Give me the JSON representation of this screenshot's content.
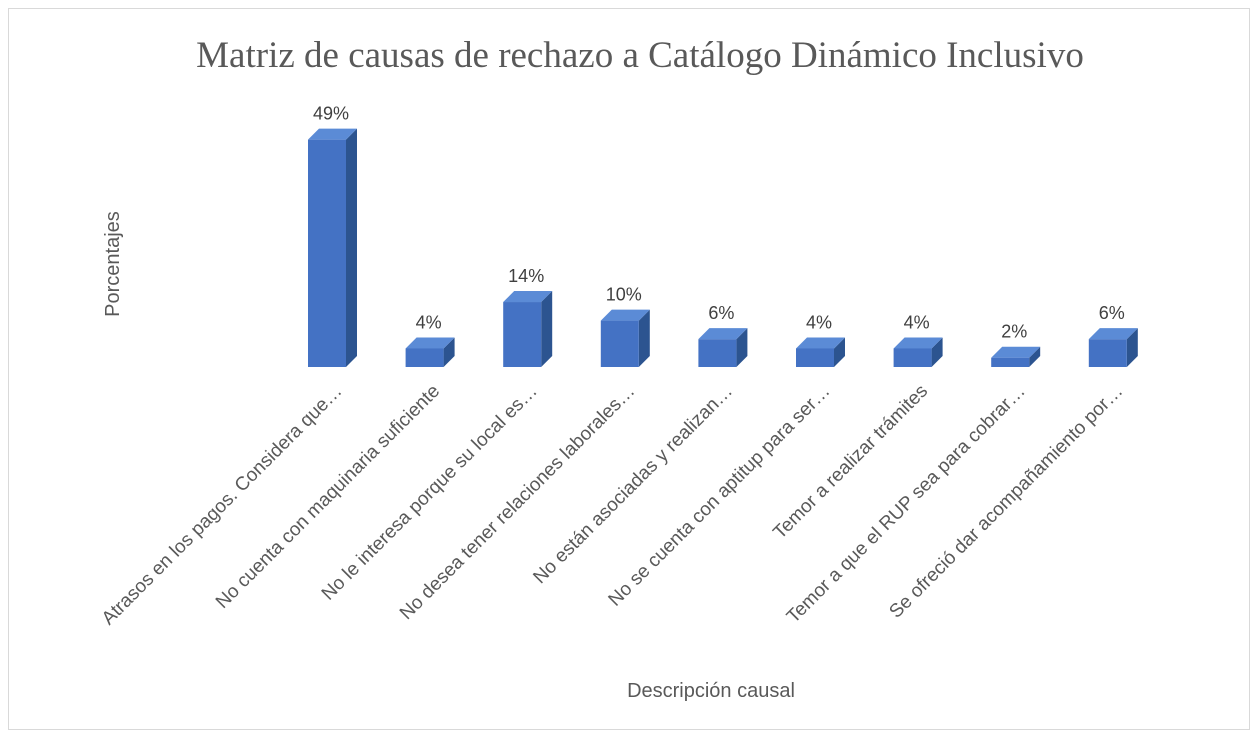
{
  "chart_data": {
    "type": "bar",
    "title": "Matriz de causas de rechazo a Catálogo Dinámico Inclusivo",
    "xlabel": "Descripción causal",
    "ylabel": "Porcentajes",
    "categories": [
      "Atrasos en los pagos. Considera que…",
      "No cuenta con maquinaria suficiente",
      "No le interesa porque su local es…",
      "No desea tener relaciones laborales…",
      "No están asociadas y realizan…",
      "No se cuenta con aptitup para ser…",
      "Temor a realizar trámites",
      "Temor a que el RUP sea para cobrar…",
      "Se ofreció dar acompañamiento por…"
    ],
    "values": [
      49,
      4,
      14,
      10,
      6,
      4,
      4,
      2,
      6
    ],
    "data_labels": [
      "49%",
      "4%",
      "14%",
      "10%",
      "6%",
      "4%",
      "4%",
      "2%",
      "6%"
    ],
    "ylim": [
      0,
      50
    ],
    "grid": false,
    "legend": "none",
    "style": "3d-column",
    "colors": {
      "front": "#4472c4",
      "side": "#2c5490",
      "top": "#5b8bd6",
      "text": "#595959"
    }
  }
}
